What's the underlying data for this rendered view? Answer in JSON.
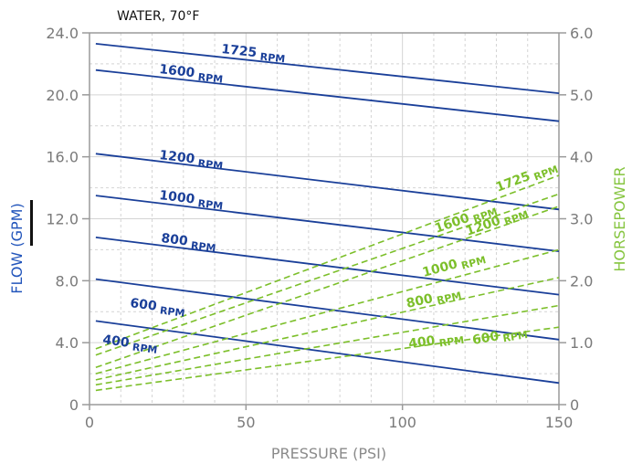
{
  "colors": {
    "flow": "#1a3f99",
    "horsepower": "#7cbf2a",
    "flow_axis_title": "#2255bb",
    "hp_axis_title": "#86c540",
    "grid": "#d4d4d4",
    "axis": "#9a9a9a",
    "marker": "#111111"
  },
  "chart_data": {
    "type": "line",
    "annotation": "WATER, 70°F",
    "xlabel": "PRESSURE (PSI)",
    "ylabel": "FLOW  (GPM)",
    "ylabel2": "HORSEPOWER",
    "xlim": [
      0,
      150
    ],
    "ylim": [
      0,
      24
    ],
    "ylim2": [
      0,
      6
    ],
    "x_ticks": [
      "0",
      "50",
      "100",
      "150"
    ],
    "x_tick_values": [
      0,
      50,
      100,
      150
    ],
    "y_ticks": [
      "0",
      "4.0",
      "8.0",
      "12.0",
      "16.0",
      "20.0",
      "24.0"
    ],
    "y_tick_values": [
      0,
      4,
      8,
      12,
      16,
      20,
      24
    ],
    "y2_ticks": [
      "0",
      "1.0",
      "2.0",
      "3.0",
      "4.0",
      "5.0",
      "6.0"
    ],
    "y2_tick_values": [
      0,
      1,
      2,
      3,
      4,
      5,
      6
    ],
    "grid": true,
    "series": [
      {
        "name": "1725 RPM",
        "axis": "flow",
        "x": [
          2,
          150
        ],
        "y": [
          23.3,
          20.1
        ]
      },
      {
        "name": "1600 RPM",
        "axis": "flow",
        "x": [
          2,
          150
        ],
        "y": [
          21.6,
          18.3
        ]
      },
      {
        "name": "1200 RPM",
        "axis": "flow",
        "x": [
          2,
          150
        ],
        "y": [
          16.2,
          12.6
        ]
      },
      {
        "name": "1000 RPM",
        "axis": "flow",
        "x": [
          2,
          150
        ],
        "y": [
          13.5,
          9.9
        ]
      },
      {
        "name": "800 RPM",
        "axis": "flow",
        "x": [
          2,
          150
        ],
        "y": [
          10.8,
          7.1
        ]
      },
      {
        "name": "600 RPM",
        "axis": "flow",
        "x": [
          2,
          150
        ],
        "y": [
          8.1,
          4.2
        ]
      },
      {
        "name": "400 RPM",
        "axis": "flow",
        "x": [
          2,
          150
        ],
        "y": [
          5.4,
          1.4
        ]
      },
      {
        "name": "1725 RPM",
        "axis": "horsepower",
        "x": [
          2,
          150
        ],
        "y": [
          0.9,
          3.7
        ]
      },
      {
        "name": "1600 RPM",
        "axis": "horsepower",
        "x": [
          2,
          150
        ],
        "y": [
          0.8,
          3.4
        ]
      },
      {
        "name": "1200 RPM",
        "axis": "horsepower",
        "x": [
          2,
          150
        ],
        "y": [
          0.6,
          3.2
        ]
      },
      {
        "name": "1000 RPM",
        "axis": "horsepower",
        "x": [
          2,
          150
        ],
        "y": [
          0.5,
          2.5
        ]
      },
      {
        "name": "800 RPM",
        "axis": "horsepower",
        "x": [
          2,
          150
        ],
        "y": [
          0.4,
          2.05
        ]
      },
      {
        "name": "600 RPM",
        "axis": "horsepower",
        "x": [
          2,
          150
        ],
        "y": [
          0.32,
          1.6
        ]
      },
      {
        "name": "400 RPM",
        "axis": "horsepower",
        "x": [
          2,
          150
        ],
        "y": [
          0.23,
          1.25
        ]
      }
    ]
  }
}
